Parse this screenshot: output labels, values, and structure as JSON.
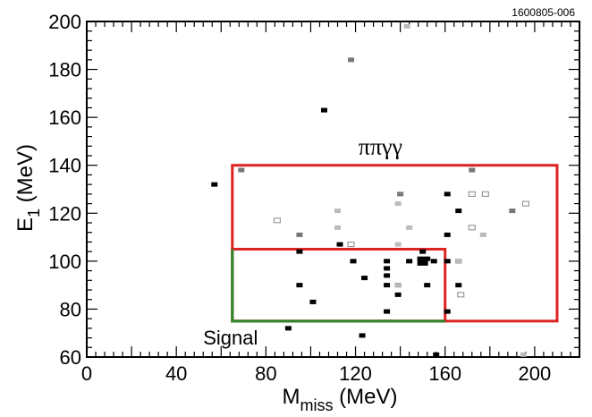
{
  "figure_id": "1600805-006",
  "chart_data": {
    "type": "scatter",
    "xlabel": {
      "main": "M",
      "sub": "miss",
      "unit": " (MeV)"
    },
    "ylabel": {
      "main": "E",
      "sub": "1",
      "unit": " (MeV)"
    },
    "xlim": [
      0,
      220
    ],
    "ylim": [
      60,
      200
    ],
    "x_ticks": [
      0,
      40,
      80,
      120,
      160,
      200
    ],
    "y_ticks": [
      60,
      80,
      100,
      120,
      140,
      160,
      180,
      200
    ],
    "grid": false,
    "regions": [
      {
        "label": "ππγγ",
        "x": [
          65,
          210
        ],
        "y": [
          75,
          140
        ],
        "color": "#dd2222"
      },
      {
        "label": "",
        "x": [
          65,
          160
        ],
        "y": [
          75,
          105
        ],
        "color": "#dd2222"
      },
      {
        "label": "Signal",
        "x": [
          65,
          160
        ],
        "y": [
          75,
          105
        ],
        "color": "#2a8a2a"
      }
    ],
    "series": [
      {
        "style": "filled",
        "color": "#000000",
        "points": [
          [
            57,
            132
          ],
          [
            106,
            163
          ],
          [
            90,
            72
          ],
          [
            95,
            104
          ],
          [
            95,
            90
          ],
          [
            113,
            107
          ],
          [
            119,
            100
          ],
          [
            101,
            83
          ],
          [
            124,
            93
          ],
          [
            123,
            69
          ],
          [
            134,
            100
          ],
          [
            134,
            97
          ],
          [
            134,
            94
          ],
          [
            134,
            90
          ],
          [
            134,
            79
          ],
          [
            139,
            86
          ],
          [
            139,
            90
          ],
          [
            144,
            100
          ],
          [
            150,
            104
          ],
          [
            149,
            101
          ],
          [
            152,
            101
          ],
          [
            152,
            90
          ],
          [
            155,
            100
          ],
          [
            156,
            61
          ],
          [
            161,
            128
          ],
          [
            161,
            111
          ],
          [
            161,
            100
          ],
          [
            161,
            79
          ],
          [
            166,
            121
          ],
          [
            166,
            100
          ],
          [
            166,
            90
          ]
        ]
      },
      {
        "style": "filled-large",
        "color": "#000000",
        "points": [
          [
            150,
            100
          ]
        ]
      },
      {
        "style": "dark-gray",
        "color": "#777777",
        "points": [
          [
            118,
            184
          ],
          [
            69,
            138
          ],
          [
            95,
            111
          ],
          [
            140,
            128
          ],
          [
            172,
            138
          ],
          [
            190,
            121
          ]
        ]
      },
      {
        "style": "light-gray",
        "color": "#bbbbbb",
        "points": [
          [
            143,
            198
          ],
          [
            112,
            121
          ],
          [
            112,
            114
          ],
          [
            139,
            124
          ],
          [
            139,
            107
          ],
          [
            144,
            114
          ],
          [
            139,
            90
          ],
          [
            166,
            100
          ],
          [
            195,
            61
          ],
          [
            177,
            111
          ]
        ]
      },
      {
        "style": "open",
        "color": "#888888",
        "points": [
          [
            85,
            117
          ],
          [
            118,
            107
          ],
          [
            172,
            128
          ],
          [
            178,
            128
          ],
          [
            172,
            114
          ],
          [
            167,
            86
          ],
          [
            196,
            124
          ]
        ]
      }
    ]
  }
}
